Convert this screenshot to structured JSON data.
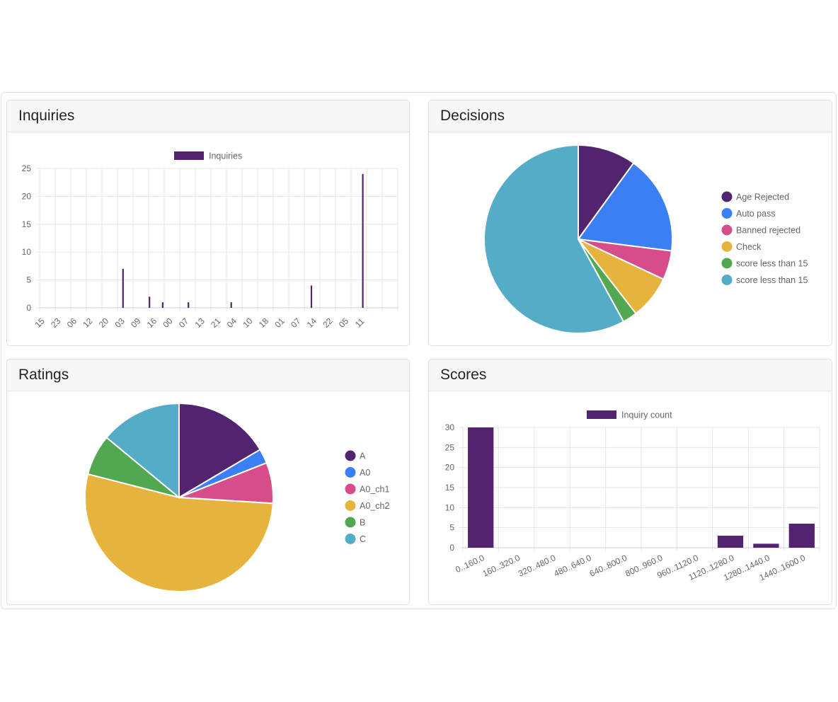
{
  "colors": {
    "purple": "#52246f",
    "blue": "#3b7ff5",
    "pink": "#d64d8a",
    "yellow": "#e6b43c",
    "green": "#52a751",
    "teal": "#55acc7",
    "grid": "#e6e6e6",
    "text": "#666666"
  },
  "cards": {
    "inquiries": {
      "title": "Inquiries"
    },
    "decisions": {
      "title": "Decisions"
    },
    "ratings": {
      "title": "Ratings"
    },
    "scores": {
      "title": "Scores"
    }
  },
  "chart_data": [
    {
      "id": "inquiries",
      "type": "bar",
      "title": "Inquiries",
      "legend": [
        "Inquiries"
      ],
      "legend_position": "top",
      "x_tick_labels": [
        "15",
        "23",
        "06",
        "12",
        "20",
        "03",
        "09",
        "16",
        "00",
        "07",
        "13",
        "21",
        "04",
        "10",
        "18",
        "01",
        "07",
        "14",
        "22",
        "05",
        "11"
      ],
      "ylim": [
        0,
        25
      ],
      "y_ticks": [
        0,
        5,
        10,
        15,
        20,
        25
      ],
      "bars": [
        {
          "x": 5.35,
          "value": 7
        },
        {
          "x": 7.05,
          "value": 2
        },
        {
          "x": 7.9,
          "value": 1
        },
        {
          "x": 9.55,
          "value": 1
        },
        {
          "x": 12.3,
          "value": 1
        },
        {
          "x": 17.45,
          "value": 4
        },
        {
          "x": 20.75,
          "value": 24
        }
      ],
      "x_range": [
        0,
        23
      ]
    },
    {
      "id": "decisions",
      "type": "pie",
      "title": "Decisions",
      "legend_position": "right",
      "labels": [
        "Age Rejected",
        "Auto pass",
        "Banned rejected",
        "Check",
        "score less than 15",
        "score less than 15"
      ],
      "values": [
        10,
        17,
        5,
        7.5,
        2.5,
        58
      ],
      "colors": [
        "#52246f",
        "#3b7ff5",
        "#d64d8a",
        "#e6b43c",
        "#52a751",
        "#55acc7"
      ]
    },
    {
      "id": "ratings",
      "type": "pie",
      "title": "Ratings",
      "legend_position": "right",
      "labels": [
        "A",
        "A0",
        "A0_ch1",
        "A0_ch2",
        "B",
        "C"
      ],
      "values": [
        16.5,
        2.5,
        7,
        53,
        7,
        14
      ],
      "colors": [
        "#52246f",
        "#3b7ff5",
        "#d64d8a",
        "#e6b43c",
        "#52a751",
        "#55acc7"
      ]
    },
    {
      "id": "scores",
      "type": "bar",
      "title": "Scores",
      "legend": [
        "Inquiry count"
      ],
      "legend_position": "top",
      "categories": [
        "0..160.0",
        "160..320.0",
        "320..480.0",
        "480..640.0",
        "640..800.0",
        "800..960.0",
        "960..1120.0",
        "1120..1280.0",
        "1280..1440.0",
        "1440..1600.0"
      ],
      "values": [
        30,
        0,
        0,
        0,
        0,
        0,
        0,
        3,
        1,
        6
      ],
      "ylim": [
        0,
        30
      ],
      "y_ticks": [
        0,
        5,
        10,
        15,
        20,
        25,
        30
      ]
    }
  ]
}
